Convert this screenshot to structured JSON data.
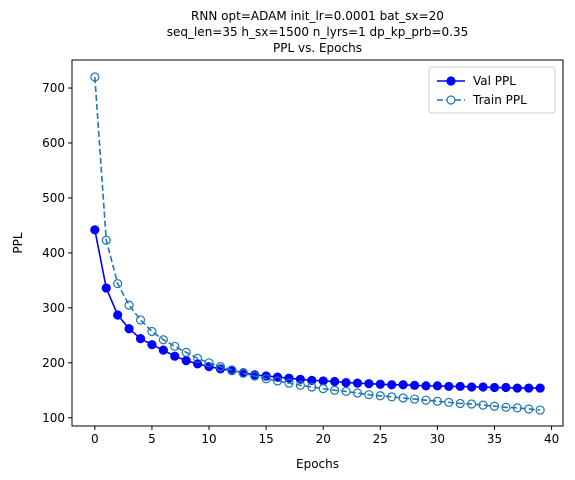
{
  "chart_data": {
    "type": "line",
    "title_lines": [
      "RNN opt=ADAM init_lr=0.0001 bat_sx=20",
      "seq_len=35 h_sx=1500 n_lyrs=1 dp_kp_prb=0.35",
      "PPL vs. Epochs"
    ],
    "xlabel": "Epochs",
    "ylabel": "PPL",
    "xlim": [
      -2,
      41
    ],
    "ylim": [
      85,
      751
    ],
    "xticks": [
      0,
      5,
      10,
      15,
      20,
      25,
      30,
      35,
      40
    ],
    "yticks": [
      100,
      200,
      300,
      400,
      500,
      600,
      700
    ],
    "legend_position": "top-right",
    "grid": false,
    "series": [
      {
        "name": "Val PPL",
        "color": "#0000ff",
        "line_style": "solid",
        "marker": "filled-circle",
        "x": [
          0,
          1,
          2,
          3,
          4,
          5,
          6,
          7,
          8,
          9,
          10,
          11,
          12,
          13,
          14,
          15,
          16,
          17,
          18,
          19,
          20,
          21,
          22,
          23,
          24,
          25,
          26,
          27,
          28,
          29,
          30,
          31,
          32,
          33,
          34,
          35,
          36,
          37,
          38,
          39
        ],
        "y": [
          442,
          336,
          287,
          262,
          244,
          233,
          223,
          212,
          204,
          198,
          193,
          189,
          186,
          182,
          178,
          176,
          174,
          172,
          170,
          168,
          167,
          166,
          164,
          163,
          162,
          161,
          160,
          160,
          159,
          158,
          158,
          157,
          157,
          156,
          156,
          155,
          155,
          154,
          154,
          154
        ]
      },
      {
        "name": "Train PPL",
        "color": "#1f77b4",
        "line_style": "dashed",
        "marker": "hollow-circle",
        "x": [
          0,
          1,
          2,
          3,
          4,
          5,
          6,
          7,
          8,
          9,
          10,
          11,
          12,
          13,
          14,
          15,
          16,
          17,
          18,
          19,
          20,
          21,
          22,
          23,
          24,
          25,
          26,
          27,
          28,
          29,
          30,
          31,
          32,
          33,
          34,
          35,
          36,
          37,
          38,
          39
        ],
        "y": [
          720,
          423,
          344,
          305,
          278,
          257,
          242,
          230,
          219,
          208,
          200,
          193,
          187,
          181,
          176,
          171,
          167,
          163,
          159,
          156,
          153,
          150,
          148,
          145,
          142,
          140,
          138,
          136,
          134,
          132,
          130,
          128,
          126,
          125,
          123,
          121,
          119,
          118,
          116,
          114
        ]
      }
    ]
  }
}
